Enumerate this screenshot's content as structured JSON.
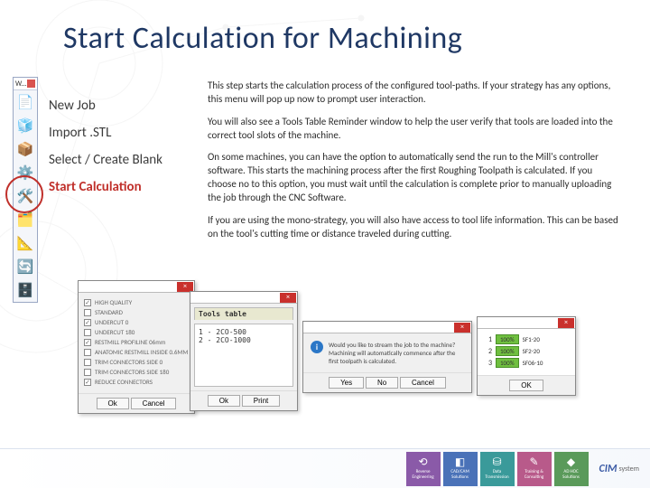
{
  "title": "Start Calculation for Machining",
  "toolbar": {
    "label": "W...",
    "icons": [
      {
        "name": "doc-icon",
        "glyph": "📄",
        "color": "#5b7fb8"
      },
      {
        "name": "model-icon",
        "glyph": "🧊",
        "color": "#d94f4a"
      },
      {
        "name": "blank-icon",
        "glyph": "📦",
        "color": "#5ba85b"
      },
      {
        "name": "calc-icon",
        "glyph": "⚙️",
        "color": "#c28a30"
      },
      {
        "name": "tool-icon",
        "glyph": "🛠️",
        "color": "#7a63b8"
      },
      {
        "name": "layers-icon",
        "glyph": "🗂️",
        "color": "#4aa3d9"
      },
      {
        "name": "param-icon",
        "glyph": "📐",
        "color": "#c28a30"
      },
      {
        "name": "export-icon",
        "glyph": "🔄",
        "color": "#d94f4a"
      },
      {
        "name": "db-icon",
        "glyph": "🗄️",
        "color": "#5ba85b"
      }
    ]
  },
  "steps": {
    "items": [
      "New Job",
      "Import .STL",
      "Select / Create Blank",
      "Start Calculation"
    ],
    "activeIndex": 3
  },
  "body": {
    "p1": "This step starts the calculation process of the configured tool-paths. If your strategy has any options, this menu will pop up now to prompt user interaction.",
    "p2": "You will also see a Tools Table Reminder window to help the user verify that tools are loaded into the correct tool slots of the machine.",
    "p3": "On some machines, you can have the option to automatically send the run to the Mill's controller software. This starts the machining process after the first Roughing Toolpath is calculated. If you choose no to this option, you must wait until the calculation is complete prior to manually uploading the job through the CNC Software.",
    "p4": "If you are using the mono-strategy, you will also have access to tool life information. This can be based on the tool's cutting time or distance traveled during cutting."
  },
  "optionsDialog": {
    "items": [
      {
        "label": "HIGH QUALITY",
        "checked": true
      },
      {
        "label": "STANDARD",
        "checked": false
      },
      {
        "label": "UNDERCUT 0",
        "checked": true
      },
      {
        "label": "UNDERCUT 180",
        "checked": false
      },
      {
        "label": "RESTMILL PROFILINE 06mm",
        "checked": true
      },
      {
        "label": "ANATOMIC RESTMILL INSIDE 0.6MM",
        "checked": false
      },
      {
        "label": "TRIM CONNECTORS SIDE 0",
        "checked": false
      },
      {
        "label": "TRIM CONNECTORS SIDE 180",
        "checked": false
      },
      {
        "label": "REDUCE CONNECTORS",
        "checked": true
      }
    ],
    "ok": "Ok",
    "cancel": "Cancel"
  },
  "toolsDialog": {
    "header": "Tools table",
    "lines": [
      "1 - 2CO-500",
      "2 - 2CO-1000"
    ],
    "ok": "Ok",
    "print": "Print"
  },
  "streamDialog": {
    "msg": "Would you like to stream the job to the machine? Machining will automatically commence after the first toolpath is calculated.",
    "yes": "Yes",
    "no": "No",
    "cancel": "Cancel"
  },
  "slotDialog": {
    "rows": [
      {
        "n": "1",
        "badge": "100%",
        "name": "SF1-20"
      },
      {
        "n": "2",
        "badge": "100%",
        "name": "SF2-20"
      },
      {
        "n": "3",
        "badge": "100%",
        "name": "SF06-10"
      }
    ],
    "ok": "OK"
  },
  "footer": {
    "tiles": [
      {
        "label": "Reverse Engineering",
        "color": "#8a5aa8",
        "glyph": "⟲"
      },
      {
        "label": "CAD/CAM Solutions",
        "color": "#4a72b8",
        "glyph": "◧"
      },
      {
        "label": "Data Transmission",
        "color": "#3a9a9a",
        "glyph": "⛁"
      },
      {
        "label": "Training & Consulting",
        "color": "#b85a8a",
        "glyph": "✎"
      },
      {
        "label": "AD HOC Solutions",
        "color": "#5a9a5a",
        "glyph": "◆"
      }
    ],
    "brand": "CIM",
    "brand2": "system"
  }
}
